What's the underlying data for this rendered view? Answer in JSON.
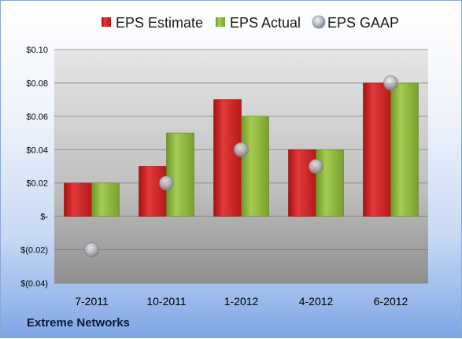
{
  "company": "Extreme Networks",
  "colors": {
    "estimate": "#d42a2a",
    "actual": "#8db43c",
    "gaap": "#b8bcc4"
  },
  "chart_data": {
    "type": "bar",
    "categories": [
      "7-2011",
      "10-2011",
      "1-2012",
      "4-2012",
      "6-2012"
    ],
    "series": [
      {
        "name": "EPS Estimate",
        "kind": "bar",
        "values": [
          0.02,
          0.03,
          0.07,
          0.04,
          0.08
        ]
      },
      {
        "name": "EPS Actual",
        "kind": "bar",
        "values": [
          0.02,
          0.05,
          0.06,
          0.04,
          0.08
        ]
      },
      {
        "name": "EPS GAAP",
        "kind": "marker",
        "values": [
          -0.02,
          0.02,
          0.04,
          0.03,
          0.08
        ]
      }
    ],
    "ylim": [
      -0.04,
      0.1
    ],
    "yticks": [
      0.1,
      0.08,
      0.06,
      0.04,
      0.02,
      0,
      -0.02,
      -0.04
    ],
    "ytick_labels": [
      "$0.10",
      "$0.08",
      "$0.06",
      "$0.04",
      "$0.02",
      "$-",
      "$(0.02)",
      "$(0.04)"
    ],
    "legend_position": "top",
    "grid": true
  }
}
